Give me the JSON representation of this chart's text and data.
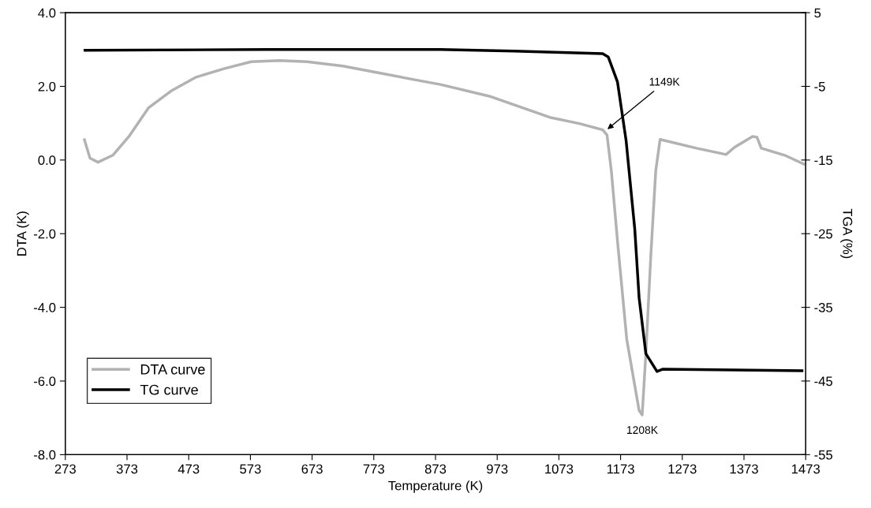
{
  "chart_data": {
    "type": "line",
    "xlabel": "Temperature (K)",
    "ylabel": "DTA (K)",
    "y2label": "TGA (%)",
    "xlim": [
      273,
      1473
    ],
    "xticks": [
      273,
      373,
      473,
      573,
      673,
      773,
      873,
      973,
      1073,
      1173,
      1273,
      1373,
      1473
    ],
    "ylim": [
      -8,
      4
    ],
    "yticks": [
      {
        "value": -8,
        "label": "-8.0"
      },
      {
        "value": -6,
        "label": "-6.0"
      },
      {
        "value": -4,
        "label": "-4.0"
      },
      {
        "value": -2,
        "label": "-2.0"
      },
      {
        "value": 0,
        "label": "0.0"
      },
      {
        "value": 2,
        "label": "2.0"
      },
      {
        "value": 4,
        "label": "4.0"
      }
    ],
    "y2lim": [
      -55,
      5
    ],
    "y2ticks": [
      -55,
      -45,
      -35,
      -25,
      -15,
      -5,
      5
    ],
    "grid": false,
    "legend": "bottom left",
    "marker": "none",
    "line_style": "solid",
    "series": [
      {
        "name": "DTA curve",
        "color": "#b2b2b2",
        "x": [
          304,
          313,
          326,
          350,
          377,
          408,
          444,
          485,
          530,
          574,
          620,
          665,
          723,
          777,
          836,
          881,
          963,
          1058,
          1106,
          1144,
          1151,
          1158,
          1168,
          1183,
          1203,
          1208,
          1214,
          1222,
          1230,
          1237,
          1296,
          1344,
          1358,
          1387,
          1394,
          1401,
          1439,
          1470
        ],
        "values": [
          0.55,
          0.05,
          -0.06,
          0.13,
          0.66,
          1.42,
          1.87,
          2.25,
          2.48,
          2.67,
          2.7,
          2.67,
          2.55,
          2.38,
          2.19,
          2.05,
          1.72,
          1.16,
          0.99,
          0.82,
          0.68,
          -0.29,
          -2.2,
          -4.87,
          -6.8,
          -6.92,
          -5.25,
          -2.6,
          -0.29,
          0.56,
          0.32,
          0.15,
          0.35,
          0.64,
          0.62,
          0.32,
          0.13,
          -0.11
        ]
      },
      {
        "name": "TG curve",
        "color": "#000000",
        "axis": "y2",
        "x": [
          305,
          600,
          881,
          1000,
          1144,
          1153,
          1168,
          1182,
          1196,
          1203,
          1214,
          1232,
          1241,
          1467
        ],
        "values": [
          -0.1,
          0.0,
          0.0,
          -0.2,
          -0.56,
          -1.0,
          -4.4,
          -12.4,
          -24.4,
          -33.7,
          -41.3,
          -43.7,
          -43.4,
          -43.6
        ]
      }
    ],
    "annotations": [
      {
        "text": "1149K",
        "x": 1149,
        "y": 0.8
      },
      {
        "text": "1208K",
        "x": 1208,
        "y": -6.92
      }
    ]
  }
}
